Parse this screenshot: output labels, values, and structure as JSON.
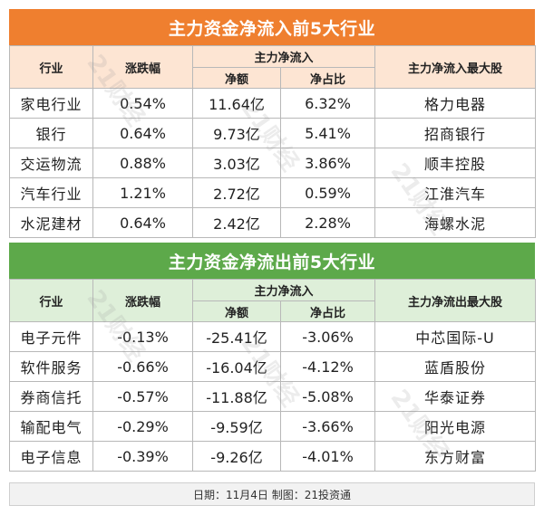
{
  "inflow": {
    "title": "主力资金净流入前5大行业",
    "headers": {
      "industry": "行业",
      "change": "涨跌幅",
      "group": "主力净流入",
      "amount": "净额",
      "ratio": "净占比",
      "top_stock": "主力净流入最大股"
    },
    "rows": [
      {
        "industry": "家电行业",
        "change": "0.54%",
        "amount": "11.64亿",
        "ratio": "6.32%",
        "stock": "格力电器"
      },
      {
        "industry": "银行",
        "change": "0.64%",
        "amount": "9.73亿",
        "ratio": "5.41%",
        "stock": "招商银行"
      },
      {
        "industry": "交运物流",
        "change": "0.88%",
        "amount": "3.03亿",
        "ratio": "3.86%",
        "stock": "顺丰控股"
      },
      {
        "industry": "汽车行业",
        "change": "1.21%",
        "amount": "2.72亿",
        "ratio": "0.59%",
        "stock": "江淮汽车"
      },
      {
        "industry": "水泥建材",
        "change": "0.64%",
        "amount": "2.42亿",
        "ratio": "2.28%",
        "stock": "海螺水泥"
      }
    ]
  },
  "outflow": {
    "title": "主力资金净流出前5大行业",
    "headers": {
      "industry": "行业",
      "change": "涨跌幅",
      "group": "主力净流入",
      "amount": "净额",
      "ratio": "净占比",
      "top_stock": "主力净流出最大股"
    },
    "rows": [
      {
        "industry": "电子元件",
        "change": "-0.13%",
        "amount": "-25.41亿",
        "ratio": "-3.06%",
        "stock": "中芯国际-U"
      },
      {
        "industry": "软件服务",
        "change": "-0.66%",
        "amount": "-16.04亿",
        "ratio": "-4.12%",
        "stock": "蓝盾股份"
      },
      {
        "industry": "券商信托",
        "change": "-0.57%",
        "amount": "-11.88亿",
        "ratio": "-5.08%",
        "stock": "华泰证券"
      },
      {
        "industry": "输配电气",
        "change": "-0.29%",
        "amount": "-9.59亿",
        "ratio": "-3.66%",
        "stock": "阳光电源"
      },
      {
        "industry": "电子信息",
        "change": "-0.39%",
        "amount": "-9.26亿",
        "ratio": "-4.01%",
        "stock": "东方财富"
      }
    ]
  },
  "footer": "日期：11月4日  制图：21投资通",
  "watermark": "21财经",
  "colors": {
    "inflow_banner": "#ef7f2f",
    "inflow_header_bg": "#fde5d3",
    "outflow_banner": "#5da94a",
    "outflow_header_bg": "#deefd9"
  }
}
